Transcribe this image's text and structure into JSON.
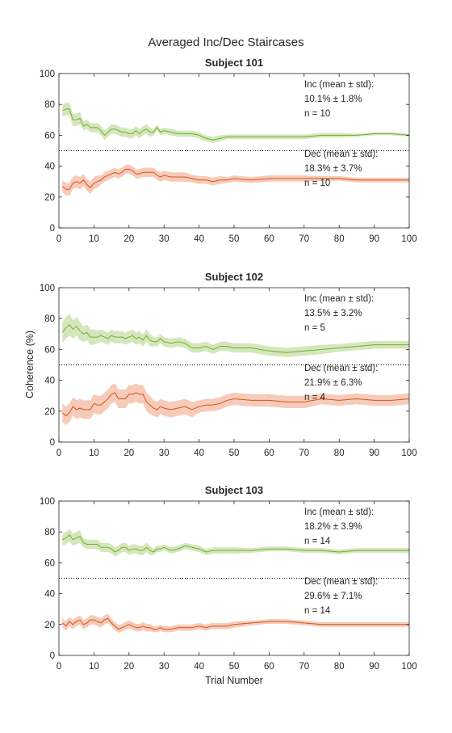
{
  "figure_title": "Averaged Inc/Dec Staircases",
  "xlabel": "Trial Number",
  "ylabel": "Coherence (%)",
  "colors": {
    "inc": "#77ac30",
    "inc_fill": "#cde3b0",
    "dec": "#d95319",
    "dec_fill": "#f5c2ad",
    "threshold": "#000000"
  },
  "chart_data": [
    {
      "type": "line",
      "title": "Subject 101",
      "xlim": [
        0,
        100
      ],
      "ylim": [
        0,
        100
      ],
      "xticks": [
        0,
        10,
        20,
        30,
        40,
        50,
        60,
        70,
        80,
        90,
        100
      ],
      "yticks": [
        0,
        20,
        40,
        60,
        80,
        100
      ],
      "threshold": 50,
      "annotations": {
        "inc": [
          "Inc (mean ± std):",
          "10.1% ± 1.8%",
          "n = 10"
        ],
        "dec": [
          "Dec (mean ± std):",
          "18.3% ± 3.7%",
          "n = 10"
        ]
      },
      "series": [
        {
          "key": "inc",
          "x": [
            1,
            2,
            3,
            4,
            5,
            6,
            7,
            8,
            9,
            10,
            11,
            12,
            13,
            14,
            15,
            16,
            17,
            18,
            19,
            20,
            21,
            22,
            23,
            24,
            25,
            26,
            27,
            28,
            29,
            30,
            32,
            34,
            36,
            38,
            40,
            42,
            44,
            46,
            48,
            50,
            55,
            60,
            65,
            70,
            75,
            80,
            85,
            90,
            95,
            100
          ],
          "mean": [
            76,
            77,
            77,
            70,
            70,
            71,
            66,
            67,
            65,
            65,
            65,
            63,
            60,
            62,
            64,
            64,
            63,
            62,
            62,
            61,
            61,
            63,
            61,
            63,
            64,
            62,
            62,
            65,
            62,
            63,
            62,
            61,
            61,
            61,
            60,
            58,
            57,
            58,
            59,
            59,
            59,
            59,
            59,
            59,
            60,
            60,
            60,
            61,
            61,
            60
          ],
          "std": [
            4,
            4,
            4,
            4,
            4,
            4,
            3,
            3,
            3,
            3,
            3,
            3,
            3,
            3,
            3,
            3,
            3,
            3,
            3,
            3,
            3,
            3,
            3,
            3,
            3,
            3,
            2,
            2,
            2,
            2,
            2,
            2,
            2,
            2,
            2,
            2,
            2,
            2,
            1.5,
            1.5,
            1.5,
            1.5,
            1.5,
            1.5,
            1.5,
            1.5,
            1,
            1,
            1,
            1
          ]
        },
        {
          "key": "dec",
          "x": [
            1,
            2,
            3,
            4,
            5,
            6,
            7,
            8,
            9,
            10,
            11,
            12,
            13,
            14,
            15,
            16,
            17,
            18,
            19,
            20,
            21,
            22,
            23,
            24,
            25,
            26,
            27,
            28,
            29,
            30,
            32,
            34,
            36,
            38,
            40,
            42,
            44,
            46,
            48,
            50,
            55,
            60,
            65,
            70,
            75,
            80,
            85,
            90,
            95,
            100
          ],
          "mean": [
            27,
            25,
            25,
            29,
            30,
            29,
            31,
            28,
            26,
            29,
            30,
            31,
            33,
            34,
            35,
            36,
            35,
            36,
            38,
            38,
            37,
            35,
            35,
            36,
            36,
            36,
            36,
            34,
            33,
            34,
            33,
            33,
            33,
            32,
            31,
            31,
            30,
            31,
            31,
            32,
            31,
            32,
            32,
            32,
            32,
            32,
            31,
            31,
            31,
            31
          ],
          "std": [
            4,
            4,
            4,
            4,
            4,
            4,
            4,
            4,
            4,
            4,
            4,
            3,
            3,
            3,
            3,
            3,
            3,
            3,
            3,
            3,
            3,
            3,
            3,
            3,
            3,
            3,
            3,
            3,
            3,
            3,
            3,
            3,
            3,
            2.5,
            2.5,
            2.5,
            2.5,
            2.5,
            2,
            2,
            2,
            2,
            2,
            2,
            1.5,
            1.5,
            1.5,
            1.5,
            1.5,
            1.5
          ]
        }
      ]
    },
    {
      "type": "line",
      "title": "Subject 102",
      "xlim": [
        0,
        100
      ],
      "ylim": [
        0,
        100
      ],
      "xticks": [
        0,
        10,
        20,
        30,
        40,
        50,
        60,
        70,
        80,
        90,
        100
      ],
      "yticks": [
        0,
        20,
        40,
        60,
        80,
        100
      ],
      "threshold": 50,
      "annotations": {
        "inc": [
          "Inc (mean ± std):",
          "13.5% ± 3.2%",
          "n = 5"
        ],
        "dec": [
          "Dec (mean ± std):",
          "21.9% ± 6.3%",
          "n = 4"
        ]
      },
      "series": [
        {
          "key": "inc",
          "x": [
            1,
            2,
            3,
            4,
            5,
            6,
            7,
            8,
            9,
            10,
            11,
            12,
            13,
            14,
            15,
            16,
            17,
            18,
            19,
            20,
            21,
            22,
            23,
            24,
            25,
            26,
            27,
            28,
            29,
            30,
            32,
            34,
            36,
            38,
            40,
            42,
            44,
            46,
            48,
            50,
            55,
            60,
            65,
            70,
            75,
            80,
            85,
            90,
            95,
            100
          ],
          "mean": [
            71,
            74,
            76,
            73,
            75,
            72,
            70,
            71,
            68,
            68,
            68,
            69,
            68,
            67,
            69,
            68,
            68,
            68,
            67,
            68,
            69,
            67,
            68,
            66,
            69,
            66,
            65,
            65,
            67,
            65,
            64,
            65,
            64,
            61,
            61,
            62,
            60,
            62,
            62,
            61,
            61,
            59,
            58,
            59,
            60,
            61,
            62,
            63,
            63,
            63
          ],
          "std": [
            7,
            7,
            7,
            6,
            6,
            6,
            5,
            5,
            5,
            5,
            4,
            4,
            4,
            4,
            4,
            4,
            4,
            4,
            4,
            4,
            4,
            4,
            4,
            4,
            4,
            4,
            3,
            3,
            3,
            3,
            3,
            3,
            3,
            3,
            3,
            3,
            3,
            3,
            3,
            3,
            3,
            3,
            3,
            3,
            3,
            2.5,
            2.5,
            2.5,
            2.5,
            2.5
          ]
        },
        {
          "key": "dec",
          "x": [
            1,
            2,
            3,
            4,
            5,
            6,
            7,
            8,
            9,
            10,
            11,
            12,
            13,
            14,
            15,
            16,
            17,
            18,
            19,
            20,
            21,
            22,
            23,
            24,
            25,
            26,
            27,
            28,
            29,
            30,
            32,
            34,
            36,
            38,
            40,
            42,
            44,
            46,
            48,
            50,
            55,
            60,
            65,
            70,
            75,
            80,
            85,
            90,
            95,
            100
          ],
          "mean": [
            19,
            17,
            19,
            23,
            21,
            22,
            21,
            21,
            21,
            25,
            24,
            24,
            26,
            28,
            31,
            32,
            28,
            28,
            28,
            31,
            31,
            32,
            31,
            31,
            26,
            24,
            22,
            21,
            23,
            22,
            21,
            22,
            23,
            21,
            23,
            24,
            24,
            25,
            27,
            28,
            27,
            27,
            26,
            26,
            28,
            27,
            28,
            27,
            27,
            28
          ],
          "std": [
            6,
            6,
            6,
            6,
            6,
            6,
            6,
            6,
            6,
            6,
            6,
            6,
            6,
            6,
            6,
            6,
            6,
            6,
            6,
            6,
            6,
            6,
            6,
            6,
            6,
            6,
            5,
            5,
            5,
            5,
            5,
            5,
            5,
            5,
            4,
            4,
            4,
            4,
            4,
            4,
            4,
            4,
            4,
            4,
            3.5,
            3.5,
            3.5,
            3.5,
            3.5,
            3.5
          ]
        }
      ]
    },
    {
      "type": "line",
      "title": "Subject 103",
      "xlim": [
        0,
        100
      ],
      "ylim": [
        0,
        100
      ],
      "xticks": [
        0,
        10,
        20,
        30,
        40,
        50,
        60,
        70,
        80,
        90,
        100
      ],
      "yticks": [
        0,
        20,
        40,
        60,
        80,
        100
      ],
      "threshold": 50,
      "annotations": {
        "inc": [
          "Inc (mean ± std):",
          "18.2% ± 3.9%",
          "n = 14"
        ],
        "dec": [
          "Dec (mean ± std):",
          "29.6% ± 7.1%",
          "n = 14"
        ]
      },
      "series": [
        {
          "key": "inc",
          "x": [
            1,
            2,
            3,
            4,
            5,
            6,
            7,
            8,
            9,
            10,
            11,
            12,
            13,
            14,
            15,
            16,
            17,
            18,
            19,
            20,
            21,
            22,
            23,
            24,
            25,
            26,
            27,
            28,
            29,
            30,
            32,
            34,
            36,
            38,
            40,
            42,
            44,
            46,
            48,
            50,
            55,
            60,
            65,
            70,
            75,
            80,
            85,
            90,
            95,
            100
          ],
          "mean": [
            75,
            76,
            78,
            75,
            76,
            77,
            73,
            72,
            72,
            72,
            72,
            70,
            70,
            70,
            69,
            67,
            68,
            70,
            70,
            68,
            69,
            69,
            68,
            68,
            70,
            68,
            67,
            69,
            69,
            70,
            68,
            69,
            71,
            70,
            69,
            67,
            68,
            68,
            68,
            68,
            68,
            69,
            69,
            68,
            68,
            67,
            68,
            68,
            68,
            68
          ],
          "std": [
            4,
            4,
            4,
            4,
            4,
            4,
            3,
            3,
            3,
            3,
            3,
            3,
            3,
            3,
            3,
            3,
            3,
            3,
            3,
            3,
            3,
            3,
            3,
            3,
            3,
            3,
            2,
            2,
            2,
            2,
            2,
            2,
            2,
            2,
            2,
            2,
            2,
            2,
            2,
            2,
            1.5,
            1.5,
            1.5,
            1.5,
            1.5,
            1.5,
            1.5,
            1.5,
            1.5,
            1.5
          ]
        },
        {
          "key": "dec",
          "x": [
            1,
            2,
            3,
            4,
            5,
            6,
            7,
            8,
            9,
            10,
            11,
            12,
            13,
            14,
            15,
            16,
            17,
            18,
            19,
            20,
            21,
            22,
            23,
            24,
            25,
            26,
            27,
            28,
            29,
            30,
            32,
            34,
            36,
            38,
            40,
            42,
            44,
            46,
            48,
            50,
            55,
            60,
            65,
            70,
            75,
            80,
            85,
            90,
            95,
            100
          ],
          "mean": [
            21,
            19,
            22,
            20,
            22,
            23,
            20,
            21,
            23,
            23,
            22,
            21,
            23,
            24,
            21,
            19,
            17,
            18,
            19,
            20,
            19,
            18,
            18,
            19,
            18,
            18,
            17,
            17,
            18,
            17,
            17,
            18,
            18,
            18,
            19,
            18,
            19,
            19,
            19,
            20,
            21,
            22,
            22,
            21,
            20,
            20,
            20,
            20,
            20,
            20
          ],
          "std": [
            3,
            3,
            3,
            3,
            3,
            3,
            3,
            3,
            3,
            3,
            3,
            3,
            3,
            3,
            2.5,
            2.5,
            2.5,
            2.5,
            2.5,
            2.5,
            2.5,
            2.5,
            2.5,
            2.5,
            2.5,
            2.5,
            2,
            2,
            2,
            2,
            2,
            2,
            2,
            2,
            2,
            2,
            2,
            2,
            2,
            2,
            1.5,
            1.5,
            1.5,
            1.5,
            1.5,
            1.5,
            1.5,
            1.5,
            1.5,
            1.5
          ]
        }
      ]
    }
  ]
}
